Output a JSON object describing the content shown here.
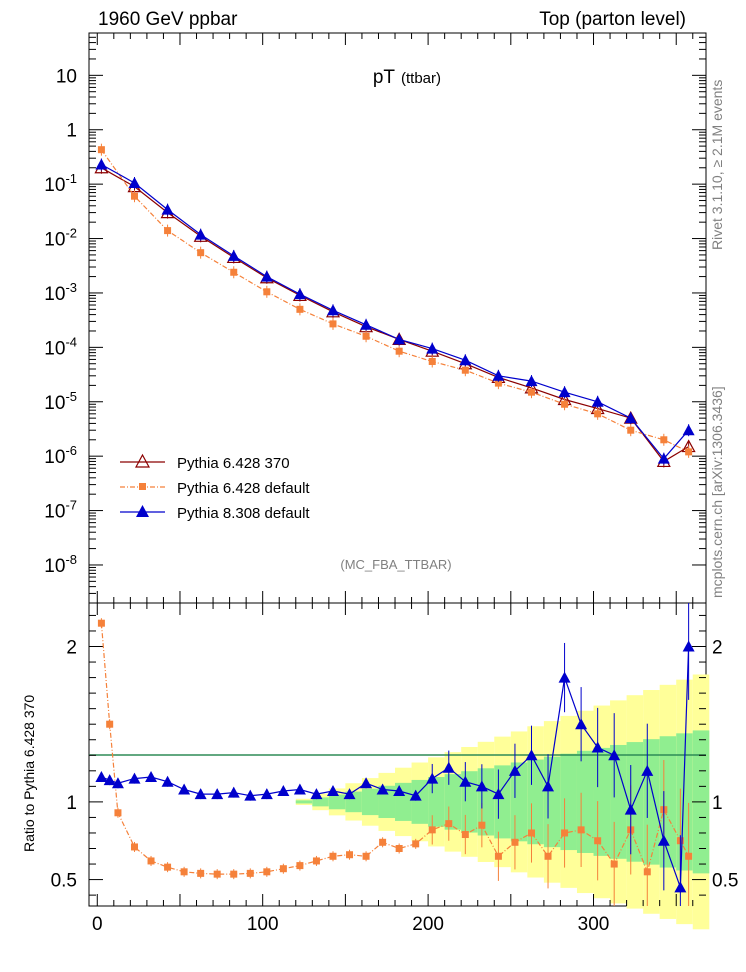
{
  "header": {
    "left": "1960 GeV ppbar",
    "right": "Top (parton level)"
  },
  "plot_title": {
    "main": "pT",
    "sub": "(ttbar)"
  },
  "side_text": {
    "rivet": "Rivet 3.1.10, ≥ 2.1M events",
    "mcplots": "mcplots.cern.ch [arXiv:1306.3436]"
  },
  "analysis_label": "(MC_FBA_TTBAR)",
  "colors": {
    "p6_370": "#8b0000",
    "p6_default": "#f5813a",
    "p8_default": "#0000cc",
    "band_green": "#90ee90",
    "band_yellow": "#ffff99"
  },
  "chart_data": [
    {
      "type": "scatter",
      "yscale": "log",
      "xlim": [
        -5,
        368
      ],
      "ylim": [
        2e-09,
        60
      ],
      "ytick_labels": [
        "10",
        "1",
        "10^-1",
        "10^-2",
        "10^-3",
        "10^-4",
        "10^-5",
        "10^-6",
        "10^-7",
        "10^-8"
      ],
      "legend_placement": "bottom-left",
      "series": [
        {
          "name": "Pythia 6.428 370",
          "marker": "open-triangle",
          "color": "#8b0000",
          "x": [
            2.5,
            22.5,
            42.5,
            62.5,
            82.5,
            102.5,
            122.5,
            142.5,
            162.5,
            182.5,
            202.5,
            222.5,
            242.5,
            262.5,
            282.5,
            302.5,
            322.5,
            342.5,
            357.5
          ],
          "y": [
            0.2,
            0.09,
            0.03,
            0.011,
            0.0045,
            0.0019,
            0.0009,
            0.00045,
            0.00024,
            0.00014,
            8.5e-05,
            5e-05,
            2.8e-05,
            1.8e-05,
            1.1e-05,
            7.5e-06,
            5e-06,
            8e-07,
            1.5e-06
          ]
        },
        {
          "name": "Pythia 6.428 default",
          "marker": "filled-square",
          "color": "#f5813a",
          "x": [
            2.5,
            22.5,
            42.5,
            62.5,
            82.5,
            102.5,
            122.5,
            142.5,
            162.5,
            182.5,
            202.5,
            222.5,
            242.5,
            262.5,
            282.5,
            302.5,
            322.5,
            342.5,
            357.5
          ],
          "y": [
            0.43,
            0.06,
            0.014,
            0.0055,
            0.0024,
            0.00105,
            0.0005,
            0.00027,
            0.00016,
            8.5e-05,
            5.5e-05,
            3.8e-05,
            2.2e-05,
            1.5e-05,
            9e-06,
            6e-06,
            3e-06,
            2e-06,
            1.2e-06
          ]
        },
        {
          "name": "Pythia 8.308 default",
          "marker": "filled-triangle",
          "color": "#0000cc",
          "x": [
            2.5,
            22.5,
            42.5,
            62.5,
            82.5,
            102.5,
            122.5,
            142.5,
            162.5,
            182.5,
            202.5,
            222.5,
            242.5,
            262.5,
            282.5,
            302.5,
            322.5,
            342.5,
            357.5
          ],
          "y": [
            0.23,
            0.105,
            0.034,
            0.0118,
            0.0048,
            0.002,
            0.00095,
            0.00048,
            0.00026,
            0.00014,
            9.5e-05,
            5.8e-05,
            3e-05,
            2.4e-05,
            1.5e-05,
            1e-05,
            5e-06,
            9e-07,
            3e-06
          ]
        }
      ]
    },
    {
      "type": "scatter",
      "ylabel": "Ratio to Pythia 6.428 370",
      "xlim": [
        -5,
        368
      ],
      "ylim": [
        0.33,
        2.28
      ],
      "yticks": [
        0.5,
        1,
        2
      ],
      "ytick_labels": [
        "0.5",
        "1",
        "2"
      ],
      "xticks": [
        0,
        100,
        200,
        300
      ],
      "xtick_labels": [
        "0",
        "100",
        "200",
        "300"
      ],
      "reference_line": 1,
      "series": [
        {
          "name": "Pythia 6.428 default",
          "x": [
            2.5,
            7.5,
            12.5,
            22.5,
            32.5,
            42.5,
            52.5,
            62.5,
            72.5,
            82.5,
            92.5,
            102.5,
            112.5,
            122.5,
            132.5,
            142.5,
            152.5,
            162.5,
            172.5,
            182.5,
            192.5,
            202.5,
            212.5,
            222.5,
            232.5,
            242.5,
            252.5,
            262.5,
            272.5,
            282.5,
            292.5,
            302.5,
            312.5,
            322.5,
            332.5,
            342.5,
            352.5,
            357.5
          ],
          "y": [
            2.15,
            1.5,
            0.93,
            0.71,
            0.62,
            0.58,
            0.55,
            0.54,
            0.535,
            0.535,
            0.54,
            0.55,
            0.57,
            0.59,
            0.62,
            0.65,
            0.66,
            0.65,
            0.74,
            0.7,
            0.73,
            0.82,
            0.86,
            0.79,
            0.85,
            0.65,
            0.74,
            0.8,
            0.65,
            0.8,
            0.82,
            0.75,
            0.6,
            0.82,
            0.55,
            0.95,
            0.75,
            0.65
          ]
        },
        {
          "name": "Pythia 8.308 default",
          "x": [
            2.5,
            7.5,
            12.5,
            22.5,
            32.5,
            42.5,
            52.5,
            62.5,
            72.5,
            82.5,
            92.5,
            102.5,
            112.5,
            122.5,
            132.5,
            142.5,
            152.5,
            162.5,
            172.5,
            182.5,
            192.5,
            202.5,
            212.5,
            222.5,
            232.5,
            242.5,
            252.5,
            262.5,
            272.5,
            282.5,
            292.5,
            302.5,
            312.5,
            322.5,
            332.5,
            342.5,
            352.5,
            357.5
          ],
          "y": [
            1.16,
            1.14,
            1.12,
            1.15,
            1.16,
            1.13,
            1.08,
            1.05,
            1.05,
            1.06,
            1.04,
            1.05,
            1.07,
            1.08,
            1.05,
            1.07,
            1.05,
            1.12,
            1.08,
            1.07,
            1.04,
            1.15,
            1.22,
            1.13,
            1.1,
            1.05,
            1.2,
            1.3,
            1.1,
            1.8,
            1.5,
            1.35,
            1.3,
            0.95,
            1.2,
            0.75,
            0.45,
            2.0
          ]
        }
      ]
    }
  ]
}
